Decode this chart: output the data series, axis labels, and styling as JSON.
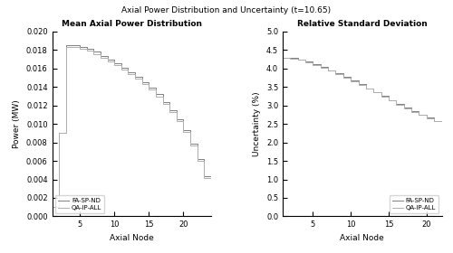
{
  "suptitle": "Axial Power Distribution and Uncertainty (t=10.65)",
  "left_title": "Mean Axial Power Distribution",
  "right_title": "Relative Standard Deviation",
  "left_xlabel": "Axial Node",
  "left_ylabel": "Power (MW)",
  "right_xlabel": "Axial Node",
  "right_ylabel": "Uncertainty (%)",
  "legend_entries": [
    "FA-SP-ND",
    "QA-IP-ALL"
  ],
  "line_color_1": "#808080",
  "line_color_2": "#b0b0b0",
  "left_ylim": [
    0,
    0.02
  ],
  "left_xlim": [
    1,
    24
  ],
  "right_ylim": [
    0,
    5
  ],
  "right_xlim": [
    1,
    22
  ],
  "left_yticks": [
    0,
    0.002,
    0.004,
    0.006,
    0.008,
    0.01,
    0.012,
    0.014,
    0.016,
    0.018,
    0.02
  ],
  "left_xticks": [
    5,
    10,
    15,
    20
  ],
  "right_yticks": [
    0,
    0.5,
    1.0,
    1.5,
    2.0,
    2.5,
    3.0,
    3.5,
    4.0,
    4.5,
    5.0
  ],
  "right_xticks": [
    5,
    10,
    15,
    20
  ],
  "power_fa_sp_nd": [
    0.001,
    0.009,
    0.0185,
    0.0185,
    0.0183,
    0.0181,
    0.0178,
    0.0174,
    0.017,
    0.0166,
    0.0161,
    0.0156,
    0.0151,
    0.0145,
    0.0139,
    0.0132,
    0.0124,
    0.0115,
    0.0105,
    0.0093,
    0.0079,
    0.0062,
    0.0043,
    0.0029
  ],
  "power_qa_ip_all": [
    0.001,
    0.009,
    0.0183,
    0.0183,
    0.0181,
    0.0179,
    0.0176,
    0.0172,
    0.0168,
    0.0164,
    0.0159,
    0.0154,
    0.0149,
    0.0143,
    0.0137,
    0.013,
    0.0122,
    0.0113,
    0.0103,
    0.0091,
    0.0077,
    0.006,
    0.0041,
    0.0027
  ],
  "uncert_fa_sp_nd": [
    4.3,
    4.29,
    4.25,
    4.19,
    4.12,
    4.05,
    3.96,
    3.87,
    3.78,
    3.68,
    3.58,
    3.47,
    3.37,
    3.26,
    3.15,
    3.05,
    2.95,
    2.85,
    2.76,
    2.67,
    2.59,
    2.52
  ],
  "uncert_qa_ip_all": [
    4.28,
    4.27,
    4.23,
    4.17,
    4.1,
    4.03,
    3.94,
    3.85,
    3.76,
    3.66,
    3.56,
    3.45,
    3.35,
    3.24,
    3.13,
    3.03,
    2.93,
    2.83,
    2.74,
    2.65,
    2.57,
    2.5
  ]
}
